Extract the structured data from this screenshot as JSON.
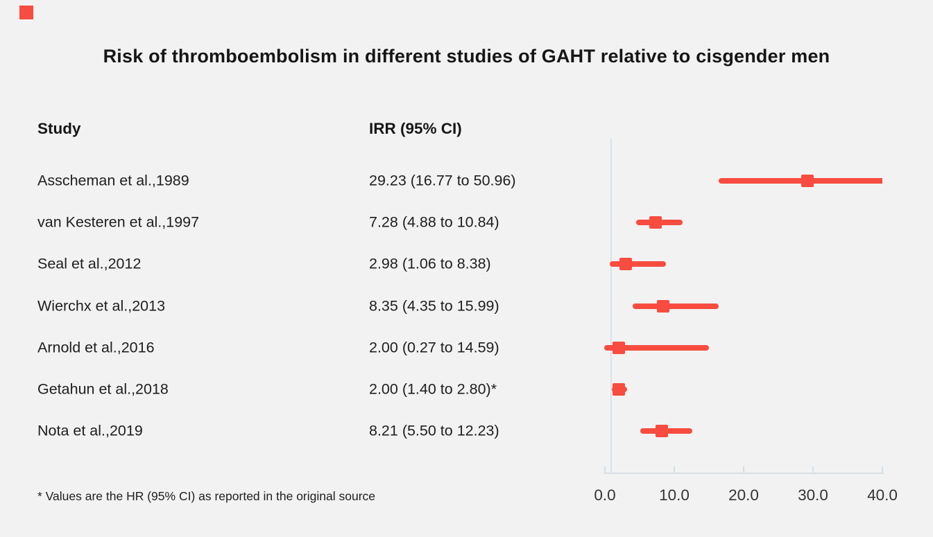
{
  "header": {
    "study": "Study",
    "irr": "IRR (95% CI)"
  },
  "footnote": "* Values are the HR (95% CI) as reported in the original source",
  "colors": {
    "marker": "#f74c3f",
    "axis": "#d8dde3",
    "reference_line": "#dde2e8",
    "background": "#f2f2f2",
    "text": "#1e1e1e",
    "brand_mark": "#f74c3f"
  },
  "chart_data": {
    "type": "forest",
    "title": "Risk of thromboembolism in different studies of GAHT relative to cisgender men",
    "xlabel": "",
    "ylabel": "",
    "xlim": [
      0,
      40
    ],
    "reference_line": 1.0,
    "grid": false,
    "x_ticks": [
      0,
      10,
      20,
      30,
      40
    ],
    "x_tick_labels": [
      "0.0",
      "10.0",
      "20.0",
      "30.0",
      "40.0"
    ],
    "series_label": "IRR (95% CI)",
    "studies": [
      {
        "study": "Asscheman et al.,1989",
        "irr_label": "29.23 (16.77 to 50.96)",
        "estimate": 29.23,
        "ci_low": 16.77,
        "ci_high": 50.96
      },
      {
        "study": "van Kesteren et al.,1997",
        "irr_label": "7.28 (4.88 to 10.84)",
        "estimate": 7.28,
        "ci_low": 4.88,
        "ci_high": 10.84
      },
      {
        "study": "Seal et al.,2012",
        "irr_label": "2.98 (1.06 to 8.38)",
        "estimate": 2.98,
        "ci_low": 1.06,
        "ci_high": 8.38
      },
      {
        "study": "Wierchx et al.,2013",
        "irr_label": "8.35 (4.35 to 15.99)",
        "estimate": 8.35,
        "ci_low": 4.35,
        "ci_high": 15.99
      },
      {
        "study": "Arnold et al.,2016",
        "irr_label": "2.00 (0.27 to 14.59)",
        "estimate": 2.0,
        "ci_low": 0.27,
        "ci_high": 14.59
      },
      {
        "study": "Getahun et al.,2018",
        "irr_label": "2.00 (1.40 to 2.80)*",
        "estimate": 2.0,
        "ci_low": 1.4,
        "ci_high": 2.8
      },
      {
        "study": "Nota et al.,2019",
        "irr_label": "8.21 (5.50 to 12.23)",
        "estimate": 8.21,
        "ci_low": 5.5,
        "ci_high": 12.23
      }
    ]
  }
}
